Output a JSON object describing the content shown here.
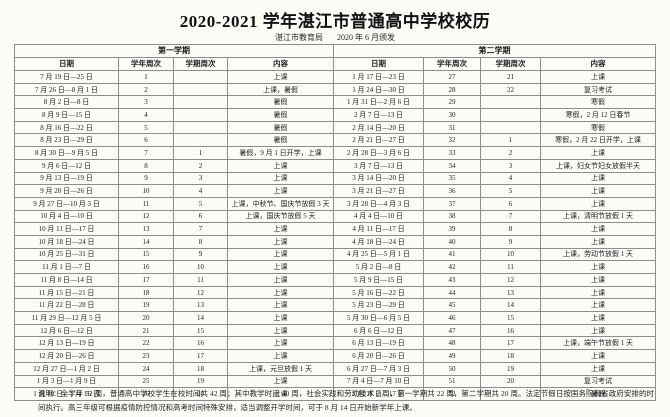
{
  "title": "2020-2021 学年湛江市普通高中学校校历",
  "subtitle": {
    "issuer": "湛江市教育局",
    "issued": "2020 年 6 月颁发"
  },
  "table": {
    "semester1_header": "第一学期",
    "semester2_header": "第二学期",
    "columns": [
      "日期",
      "学年周次",
      "学期周次",
      "内容"
    ],
    "rows": [
      [
        "7 月 19 日—25 日",
        "1",
        "",
        "上课",
        "1 月 17 日—23 日",
        "27",
        "21",
        "上课"
      ],
      [
        "7 月 26 日—8 月 1 日",
        "2",
        "",
        "上课，暑假",
        "1 月 24 日—30 日",
        "28",
        "22",
        "复习考试"
      ],
      [
        "8 月 2 日—8 日",
        "3",
        "",
        "暑假",
        "1 月 31 日—2 月 6 日",
        "29",
        "",
        "寒假"
      ],
      [
        "8 月 9 日—15 日",
        "4",
        "",
        "暑假",
        "2 月 7 日—13 日",
        "30",
        "",
        "寒假，2 月 12 日春节"
      ],
      [
        "8 月 16 日—22 日",
        "5",
        "",
        "暑假",
        "2 月 14 日—20 日",
        "31",
        "",
        "寒假"
      ],
      [
        "8 月 23 日—29 日",
        "6",
        "",
        "暑假",
        "2 月 21 日—27 日",
        "32",
        "1",
        "寒假，2 月 22 日开学，上课"
      ],
      [
        "8 月 30 日—9 月 5 日",
        "7",
        "1",
        "暑假，9 月 1 日开学，上课",
        "2 月 28 日—3 月 6 日",
        "33",
        "2",
        "上课"
      ],
      [
        "9 月 6 日—12 日",
        "8",
        "2",
        "上课",
        "3 月 7 日—13 日",
        "34",
        "3",
        "上课，妇女节妇女放假半天"
      ],
      [
        "9 月 13 日—19 日",
        "9",
        "3",
        "上课",
        "3 月 14 日—20 日",
        "35",
        "4",
        "上课"
      ],
      [
        "9 月 20 日—26 日",
        "10",
        "4",
        "上课",
        "3 月 21 日—27 日",
        "36",
        "5",
        "上课"
      ],
      [
        "9 月 27 日—10 月 3 日",
        "11",
        "5",
        "上课，中秋节、国庆节放假 3 天",
        "3 月 28 日—4 月 3 日",
        "37",
        "6",
        "上课"
      ],
      [
        "10 月 4 日—10 日",
        "12",
        "6",
        "上课，国庆节放假 5 天",
        "4 月 4 日—10 日",
        "38",
        "7",
        "上课，清明节放假 1 天"
      ],
      [
        "10 月 11 日—17 日",
        "13",
        "7",
        "上课",
        "4 月 11 日—17 日",
        "39",
        "8",
        "上课"
      ],
      [
        "10 月 18 日—24 日",
        "14",
        "8",
        "上课",
        "4 月 18 日—24 日",
        "40",
        "9",
        "上课"
      ],
      [
        "10 月 25 日—31 日",
        "15",
        "9",
        "上课",
        "4 月 25 日—5 月 1 日",
        "41",
        "10",
        "上课，劳动节放假 1 天"
      ],
      [
        "11 月 1 日—7 日",
        "16",
        "10",
        "上课",
        "5 月 2 日—8 日",
        "42",
        "11",
        "上课"
      ],
      [
        "11 月 8 日—14 日",
        "17",
        "11",
        "上课",
        "5 月 9 日—15 日",
        "43",
        "12",
        "上课"
      ],
      [
        "11 月 15 日—21 日",
        "18",
        "12",
        "上课",
        "5 月 16 日—22 日",
        "44",
        "13",
        "上课"
      ],
      [
        "11 月 22 日—28 日",
        "19",
        "13",
        "上课",
        "5 月 23 日—29 日",
        "45",
        "14",
        "上课"
      ],
      [
        "11 月 29 日—12 月 5 日",
        "20",
        "14",
        "上课",
        "5 月 30 日—6 月 5 日",
        "46",
        "15",
        "上课"
      ],
      [
        "12 月 6 日—12 日",
        "21",
        "15",
        "上课",
        "6 月 6 日—12 日",
        "47",
        "16",
        "上课"
      ],
      [
        "12 月 13 日—19 日",
        "22",
        "16",
        "上课",
        "6 月 13 日—19 日",
        "48",
        "17",
        "上课，端午节放假 1 天"
      ],
      [
        "12 月 20 日—26 日",
        "23",
        "17",
        "上课",
        "6 月 20 日—26 日",
        "49",
        "18",
        "上课"
      ],
      [
        "12 月 27 日—1 月 2 日",
        "24",
        "18",
        "上课，元旦放假 1 天",
        "6 月 27 日—7 月 3 日",
        "50",
        "19",
        "上课"
      ],
      [
        "1 月 3 日—1 月 9 日",
        "25",
        "19",
        "上课",
        "7 月 4 日—7 月 10 日",
        "51",
        "20",
        "复习考试"
      ],
      [
        "1 月 10 日—1 月 16 日",
        "26",
        "20",
        "上课",
        "7 月 11 日—17 日",
        "52",
        "",
        "暑假"
      ]
    ]
  },
  "note": "说明：全学年 52 周，普通高中学校学生在校时间共 42 周；其中教学时间 40 周，社会实践和劳动技术 2 周，第一学期共 22 周，第二学期共 20 周。法定节假日按国务院和省政府安排的时间执行。高三年级可根据疫情防控情况和高考时间特殊安排，适当调整开学时间，可于 8 月 14 日开始新学年上课。"
}
